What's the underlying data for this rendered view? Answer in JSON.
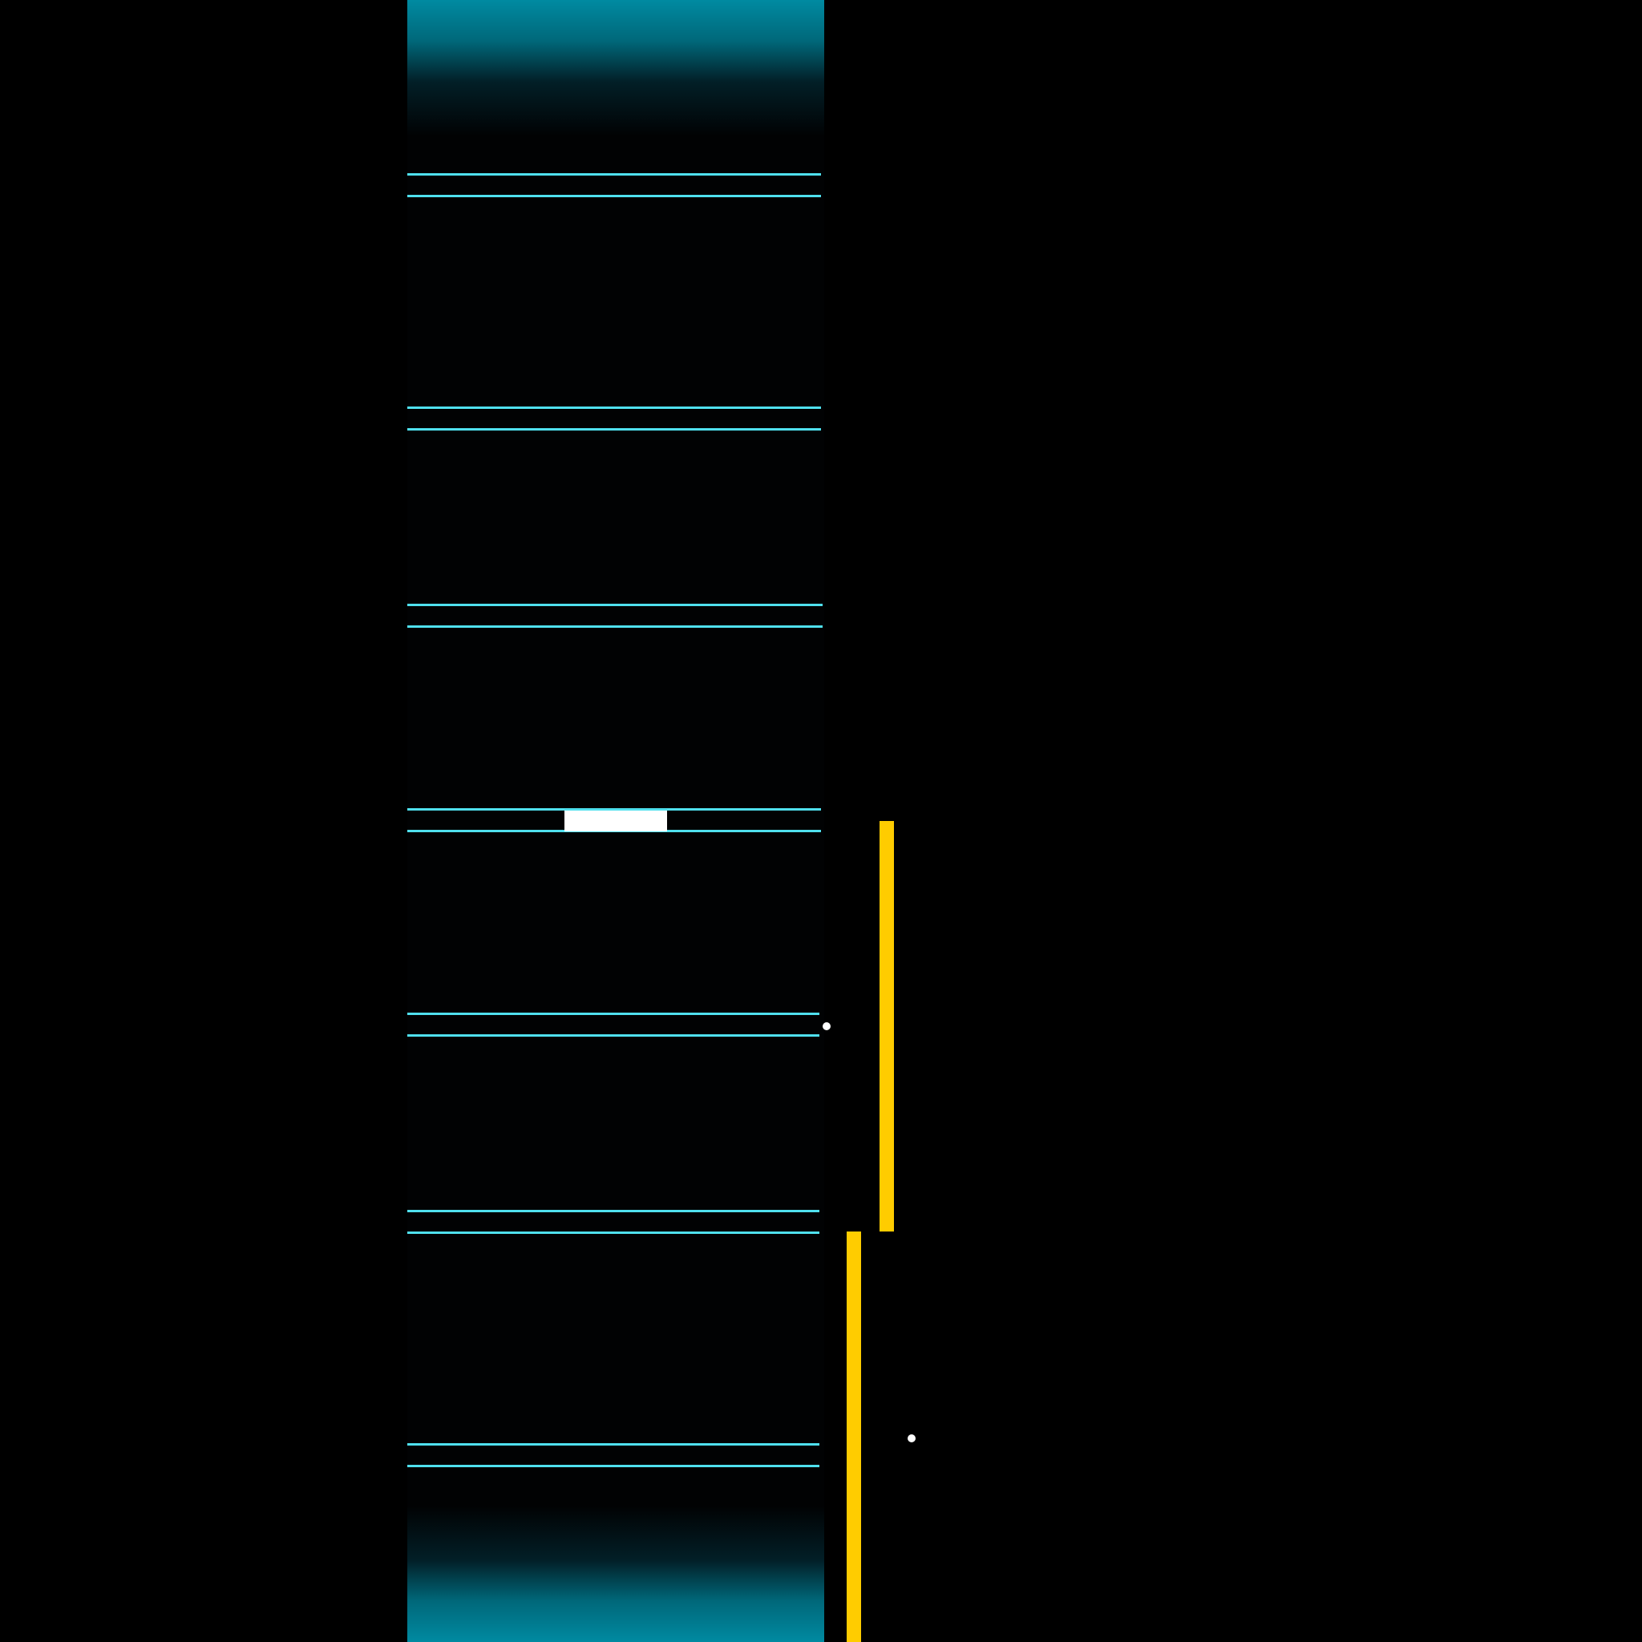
{
  "game": {
    "background_color": "#000000",
    "shaft_color": "#010203",
    "glow_color": "#008aa1",
    "rail_color": "#4fe0ee",
    "player_color": "#ffffff",
    "hazard_color": "#ffcc00",
    "orb_color": "#ffffff",
    "ledge_count": 7,
    "hazard_count": 2,
    "orb_count": 2
  }
}
